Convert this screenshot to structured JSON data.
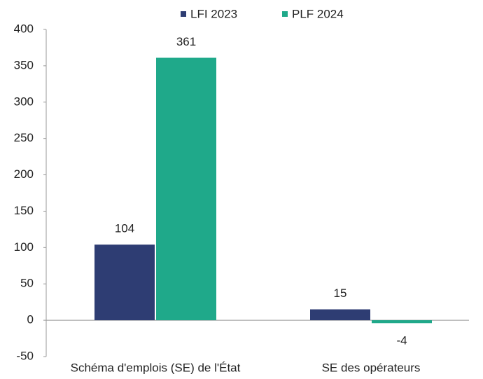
{
  "chart_data": {
    "type": "bar",
    "categories": [
      "Schéma d'emplois (SE) de l'État",
      "SE des opérateurs"
    ],
    "series": [
      {
        "name": "LFI 2023",
        "color": "#2e3d73",
        "values": [
          104,
          15
        ]
      },
      {
        "name": "PLF 2024",
        "color": "#1fa98a",
        "values": [
          361,
          -4
        ]
      }
    ],
    "ylim": [
      -50,
      400
    ],
    "yticks": [
      -50,
      0,
      50,
      100,
      150,
      200,
      250,
      300,
      350,
      400
    ],
    "legend": "top",
    "grid": false
  }
}
